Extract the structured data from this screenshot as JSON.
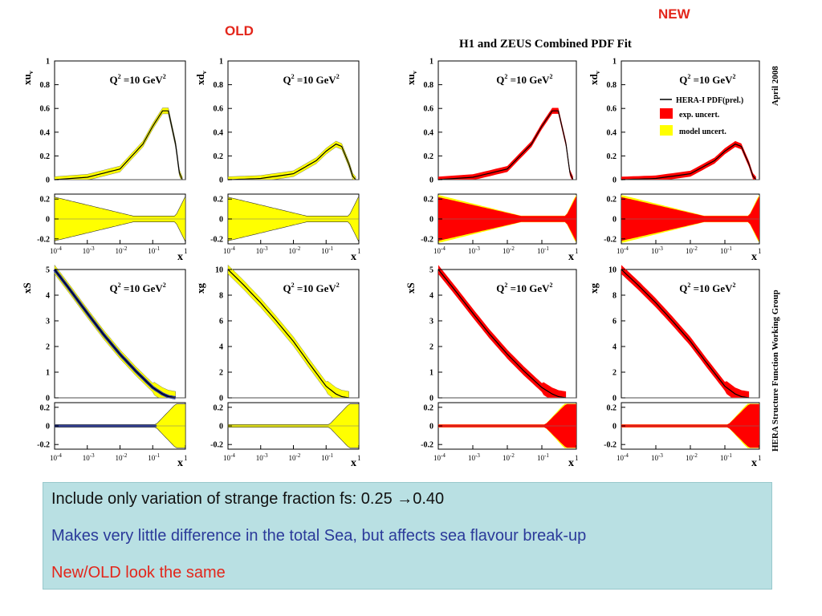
{
  "labels": {
    "old": "OLD",
    "new": "NEW",
    "fit_title": "H1 and ZEUS Combined PDF Fit",
    "date": "April 2008",
    "group": "HERA Structure Function Working Group"
  },
  "colors": {
    "exp_band": "#ff0000",
    "model_band": "#ffff00",
    "old_band": "#ffff00",
    "old_sea_core": "#1f2f9e",
    "central": "#000000",
    "slide_old_new": "#e3261b",
    "slide_blue": "#2b3a9a",
    "note_bg": "#b9e0e3"
  },
  "legend": {
    "central": "HERA-I PDF(prel.)",
    "exp": "exp. uncert.",
    "model": "model uncert."
  },
  "panel_text": {
    "q2": "=10 GeV",
    "x_axis": "x",
    "x_ticks": [
      "10",
      "10",
      "10",
      "10",
      "1"
    ],
    "x_exponents": [
      "-4",
      "-3",
      "-2",
      "-1",
      ""
    ]
  },
  "chart_data": [
    {
      "type": "line",
      "group": "OLD",
      "quantity": "xu",
      "subscript": "v",
      "ylim": [
        0,
        1
      ],
      "yticks": [
        "0",
        "0.2",
        "0.4",
        "0.6",
        "0.8",
        "1"
      ],
      "x": [
        0.0001,
        0.001,
        0.01,
        0.05,
        0.1,
        0.2,
        0.3,
        0.5,
        0.65,
        0.8
      ],
      "y": [
        0.0,
        0.02,
        0.09,
        0.3,
        0.45,
        0.58,
        0.58,
        0.3,
        0.06,
        0.0
      ],
      "ratio_ylim": [
        -0.2,
        0.2
      ],
      "ratio_yticks": [
        "0.2",
        "0",
        "-0.2"
      ]
    },
    {
      "type": "line",
      "group": "OLD",
      "quantity": "xd",
      "subscript": "v",
      "ylim": [
        0,
        1
      ],
      "yticks": [
        "0",
        "0.2",
        "0.4",
        "0.6",
        "0.8",
        "1"
      ],
      "x": [
        0.0001,
        0.001,
        0.01,
        0.05,
        0.1,
        0.2,
        0.3,
        0.5,
        0.65,
        0.8
      ],
      "y": [
        0.0,
        0.01,
        0.05,
        0.16,
        0.24,
        0.3,
        0.28,
        0.13,
        0.03,
        0.0
      ],
      "ratio_ylim": [
        -0.2,
        0.2
      ],
      "ratio_yticks": [
        "0.2",
        "0",
        "-0.2"
      ]
    },
    {
      "type": "line",
      "group": "OLD",
      "quantity": "xS",
      "subscript": "",
      "ylim": [
        0,
        5
      ],
      "yticks": [
        "0",
        "1",
        "2",
        "3",
        "4",
        "5"
      ],
      "x": [
        0.0001,
        0.0003,
        0.001,
        0.003,
        0.01,
        0.03,
        0.1,
        0.2,
        0.3,
        0.5
      ],
      "y": [
        5.0,
        4.2,
        3.3,
        2.5,
        1.7,
        1.05,
        0.4,
        0.15,
        0.05,
        0.0
      ],
      "ratio_ylim": [
        -0.2,
        0.2
      ],
      "ratio_yticks": [
        "0.2",
        "0",
        "-0.2"
      ]
    },
    {
      "type": "line",
      "group": "OLD",
      "quantity": "xg",
      "subscript": "",
      "ylim": [
        0,
        10
      ],
      "yticks": [
        "0",
        "2",
        "4",
        "6",
        "8",
        "10"
      ],
      "x": [
        0.0001,
        0.0003,
        0.001,
        0.003,
        0.01,
        0.03,
        0.1,
        0.2,
        0.3,
        0.5
      ],
      "y": [
        10.0,
        8.8,
        7.4,
        6.0,
        4.4,
        2.7,
        0.9,
        0.3,
        0.1,
        0.0
      ],
      "ratio_ylim": [
        -0.2,
        0.2
      ],
      "ratio_yticks": [
        "0.2",
        "0",
        "-0.2"
      ]
    },
    {
      "type": "line",
      "group": "NEW",
      "quantity": "xu",
      "subscript": "v",
      "ylim": [
        0,
        1
      ],
      "yticks": [
        "0",
        "0.2",
        "0.4",
        "0.6",
        "0.8",
        "1"
      ],
      "x": [
        0.0001,
        0.001,
        0.01,
        0.05,
        0.1,
        0.2,
        0.3,
        0.5,
        0.65,
        0.8
      ],
      "y": [
        0.0,
        0.02,
        0.09,
        0.3,
        0.45,
        0.58,
        0.58,
        0.3,
        0.06,
        0.0
      ],
      "ratio_ylim": [
        -0.2,
        0.2
      ],
      "ratio_yticks": [
        "0.2",
        "0",
        "-0.2"
      ]
    },
    {
      "type": "line",
      "group": "NEW",
      "quantity": "xd",
      "subscript": "v",
      "ylim": [
        0,
        1
      ],
      "yticks": [
        "0",
        "0.2",
        "0.4",
        "0.6",
        "0.8",
        "1"
      ],
      "x": [
        0.0001,
        0.001,
        0.01,
        0.05,
        0.1,
        0.2,
        0.3,
        0.5,
        0.65,
        0.8
      ],
      "y": [
        0.0,
        0.01,
        0.05,
        0.16,
        0.24,
        0.3,
        0.28,
        0.13,
        0.03,
        0.0
      ],
      "ratio_ylim": [
        -0.2,
        0.2
      ],
      "ratio_yticks": [
        "0.2",
        "0",
        "-0.2"
      ]
    },
    {
      "type": "line",
      "group": "NEW",
      "quantity": "xS",
      "subscript": "",
      "ylim": [
        0,
        5
      ],
      "yticks": [
        "0",
        "1",
        "2",
        "3",
        "4",
        "5"
      ],
      "x": [
        0.0001,
        0.0003,
        0.001,
        0.003,
        0.01,
        0.03,
        0.1,
        0.2,
        0.3,
        0.5
      ],
      "y": [
        5.0,
        4.2,
        3.3,
        2.5,
        1.7,
        1.05,
        0.4,
        0.15,
        0.05,
        0.0
      ],
      "ratio_ylim": [
        -0.2,
        0.2
      ],
      "ratio_yticks": [
        "0.2",
        "0",
        "-0.2"
      ]
    },
    {
      "type": "line",
      "group": "NEW",
      "quantity": "xg",
      "subscript": "",
      "ylim": [
        0,
        10
      ],
      "yticks": [
        "0",
        "2",
        "4",
        "6",
        "8",
        "10"
      ],
      "x": [
        0.0001,
        0.0003,
        0.001,
        0.003,
        0.01,
        0.03,
        0.1,
        0.2,
        0.3,
        0.5
      ],
      "y": [
        10.0,
        8.8,
        7.4,
        6.0,
        4.4,
        2.7,
        0.9,
        0.3,
        0.1,
        0.0
      ],
      "ratio_ylim": [
        -0.2,
        0.2
      ],
      "ratio_yticks": [
        "0.2",
        "0",
        "-0.2"
      ]
    }
  ],
  "note": {
    "line1": "Include only variation of strange fraction fs: 0.25 →0.40",
    "line2": "Makes very little difference in the total Sea, but affects sea flavour break-up",
    "line3": "New/OLD look the same"
  }
}
